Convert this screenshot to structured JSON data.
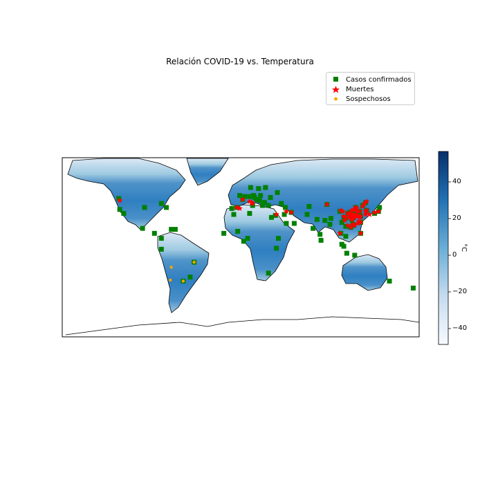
{
  "title": "Relación COVID-19 vs. Temperatura",
  "legend": {
    "items": [
      {
        "label": "Casos confirmados",
        "marker": "square",
        "color": "#008000"
      },
      {
        "label": "Muertes",
        "marker": "star",
        "color": "#ff0000"
      },
      {
        "label": "Sospechosos",
        "marker": "circle",
        "color": "#ffa500"
      }
    ]
  },
  "colorbar": {
    "label": "°C",
    "ticks": [
      "40",
      "20",
      "0",
      "−20",
      "−40"
    ],
    "range": [
      -48,
      56
    ],
    "colormap": "Blues",
    "color_low": "#f7fbff",
    "color_high": "#08306b"
  },
  "chart_data": {
    "type": "scatter",
    "projection": "PlateCarree",
    "background": "temperature field over land (Blues colormap)",
    "series": [
      {
        "name": "Casos confirmados",
        "marker": "square",
        "color": "#008000",
        "points": [
          [
            -123,
            49
          ],
          [
            -118,
            34
          ],
          [
            -99,
            19
          ],
          [
            -87,
            14
          ],
          [
            -80,
            9
          ],
          [
            -80,
            -2
          ],
          [
            -75,
            40
          ],
          [
            -97,
            40
          ],
          [
            -80,
            44
          ],
          [
            -47,
            -15
          ],
          [
            -51,
            -30
          ],
          [
            -58,
            -34
          ],
          [
            -122,
            38
          ],
          [
            -9,
            39
          ],
          [
            -4,
            40
          ],
          [
            2,
            48
          ],
          [
            9,
            51
          ],
          [
            13,
            52
          ],
          [
            20,
            52
          ],
          [
            18,
            59
          ],
          [
            25,
            60
          ],
          [
            10,
            60
          ],
          [
            -1,
            52
          ],
          [
            4,
            51
          ],
          [
            14,
            50
          ],
          [
            24,
            45
          ],
          [
            28,
            42
          ],
          [
            12,
            42
          ],
          [
            16,
            48
          ],
          [
            19,
            47
          ],
          [
            22,
            42
          ],
          [
            37,
            55
          ],
          [
            30,
            50
          ],
          [
            41,
            44
          ],
          [
            45,
            40
          ],
          [
            44,
            33
          ],
          [
            51,
            35
          ],
          [
            35,
            32
          ],
          [
            31,
            30
          ],
          [
            46,
            24
          ],
          [
            54,
            24
          ],
          [
            67,
            33
          ],
          [
            69,
            41
          ],
          [
            77,
            28
          ],
          [
            73,
            19
          ],
          [
            80,
            13
          ],
          [
            90,
            23
          ],
          [
            85,
            27
          ],
          [
            81,
            7
          ],
          [
            101,
            14
          ],
          [
            106,
            21
          ],
          [
            106,
            11
          ],
          [
            102,
            3
          ],
          [
            104,
            1
          ],
          [
            121,
            14
          ],
          [
            107,
            -6
          ],
          [
            115,
            -8
          ],
          [
            150,
            -34
          ],
          [
            174,
            -41
          ],
          [
            114,
            22
          ],
          [
            121,
            25
          ],
          [
            127,
            37
          ],
          [
            139,
            36
          ],
          [
            135,
            34
          ],
          [
            140,
            40
          ],
          [
            116,
            40
          ],
          [
            121,
            31
          ],
          [
            113,
            23
          ],
          [
            104,
            30
          ],
          [
            114,
            30
          ],
          [
            108,
            34
          ],
          [
            126,
            45
          ],
          [
            123,
            42
          ],
          [
            117,
            36
          ],
          [
            120,
            36
          ],
          [
            113,
            34
          ],
          [
            112,
            28
          ],
          [
            106,
            29
          ],
          [
            102,
            25
          ],
          [
            87,
            43
          ],
          [
            91,
            29
          ],
          [
            100,
            36
          ],
          [
            111,
            20
          ],
          [
            110,
            35
          ],
          [
            119,
            32
          ],
          [
            3,
            6
          ],
          [
            -17,
            14
          ],
          [
            38,
            9
          ],
          [
            -7,
            33
          ],
          [
            9,
            34
          ],
          [
            7,
            9
          ],
          [
            36,
            -1
          ],
          [
            28,
            -26
          ],
          [
            -3,
            16
          ],
          [
            -70,
            18
          ],
          [
            -66,
            18
          ]
        ]
      },
      {
        "name": "Muertes",
        "marker": "star",
        "color": "#ff0000",
        "points": [
          [
            114,
            31
          ],
          [
            113,
            29
          ],
          [
            115,
            30
          ],
          [
            112,
            32
          ],
          [
            116,
            32
          ],
          [
            111,
            31
          ],
          [
            113,
            33
          ],
          [
            117,
            31
          ],
          [
            110,
            30
          ],
          [
            120,
            30
          ],
          [
            121,
            31
          ],
          [
            118,
            32
          ],
          [
            108,
            34
          ],
          [
            106,
            30
          ],
          [
            104,
            31
          ],
          [
            105,
            27
          ],
          [
            113,
            23
          ],
          [
            112,
            28
          ],
          [
            110,
            34
          ],
          [
            116,
            40
          ],
          [
            117,
            39
          ],
          [
            114,
            38
          ],
          [
            112,
            37
          ],
          [
            117,
            36
          ],
          [
            120,
            36
          ],
          [
            123,
            41
          ],
          [
            125,
            44
          ],
          [
            127,
            46
          ],
          [
            103,
            36
          ],
          [
            101,
            37
          ],
          [
            87,
            43
          ],
          [
            115,
            22
          ],
          [
            121,
            25
          ],
          [
            126,
            36
          ],
          [
            127,
            37
          ],
          [
            139,
            36
          ],
          [
            135,
            35
          ],
          [
            130,
            33
          ],
          [
            108,
            22
          ],
          [
            111,
            20
          ],
          [
            118,
            24
          ],
          [
            119,
            26
          ],
          [
            11,
            45
          ],
          [
            9,
            46
          ],
          [
            12,
            44
          ],
          [
            2,
            48
          ],
          [
            -4,
            40
          ],
          [
            -1,
            39
          ],
          [
            51,
            35
          ],
          [
            46,
            36
          ],
          [
            100,
            14
          ],
          [
            121,
            14
          ],
          [
            -122,
            47
          ],
          [
            36,
            33
          ],
          [
            126,
            33
          ]
        ]
      },
      {
        "name": "Sospechosos",
        "marker": "circle",
        "color": "#ffa500",
        "points": [
          [
            -71,
            -33
          ],
          [
            -47,
            -15
          ],
          [
            -58,
            -34
          ],
          [
            -70,
            -20
          ]
        ]
      }
    ]
  }
}
